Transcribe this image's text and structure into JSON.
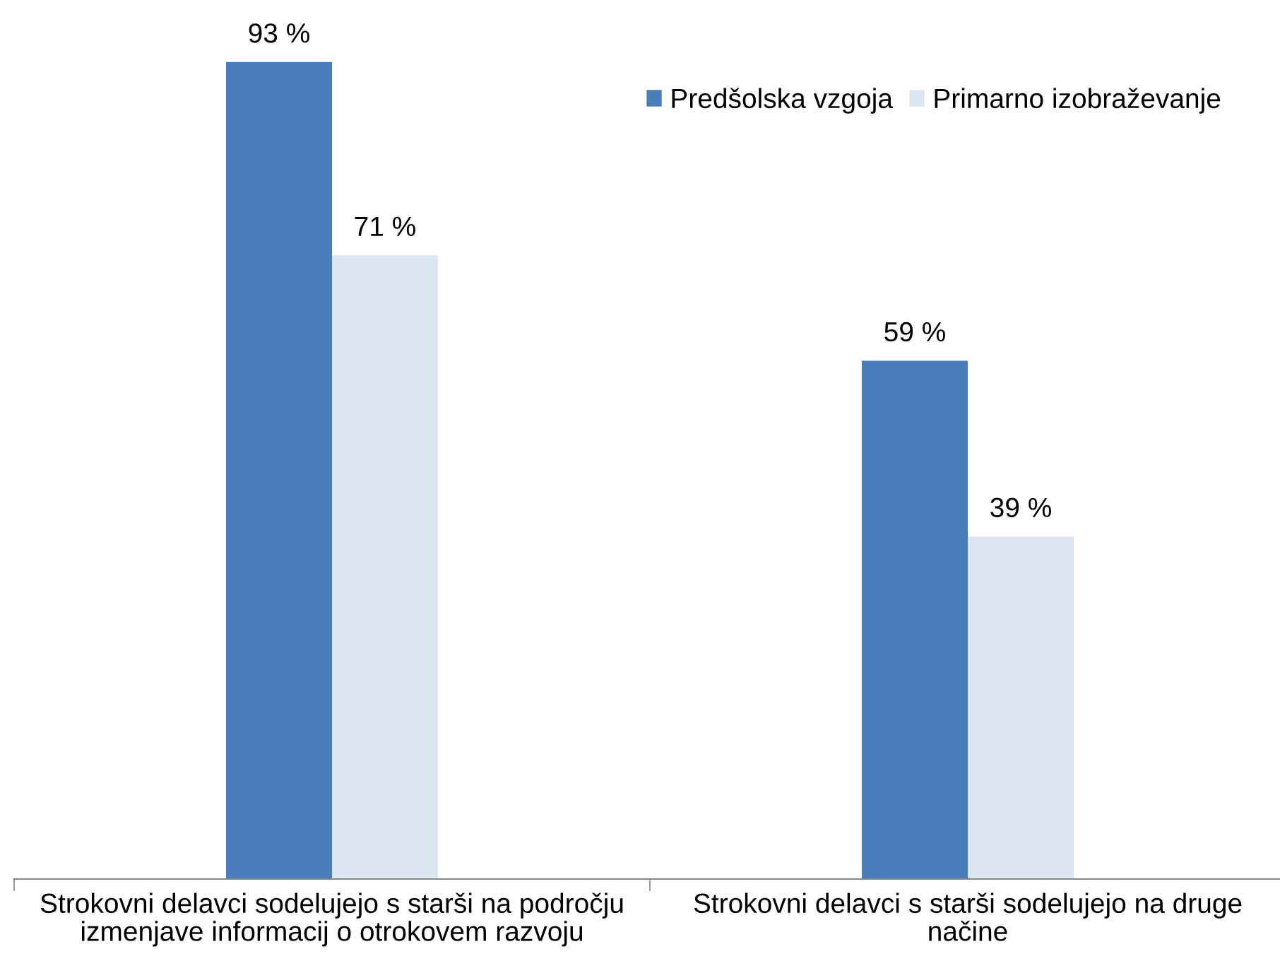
{
  "chart_data": {
    "type": "bar",
    "categories": [
      "Strokovni delavci sodelujejo s starši na področju izmenjave informacij o otrokovem razvoju",
      "Strokovni delavci s starši sodelujejo na druge načine"
    ],
    "series": [
      {
        "name": "Predšolska vzgoja",
        "color": "#4a7ebb",
        "values": [
          93,
          59
        ],
        "value_labels": [
          "93 %",
          "59 %"
        ]
      },
      {
        "name": "Primarno izobraževanje",
        "color": "#dce6f2",
        "values": [
          71,
          39
        ],
        "value_labels": [
          "71 %",
          "39 %"
        ]
      }
    ],
    "tick_labels": "x",
    "legend": "top right",
    "grid": false
  }
}
